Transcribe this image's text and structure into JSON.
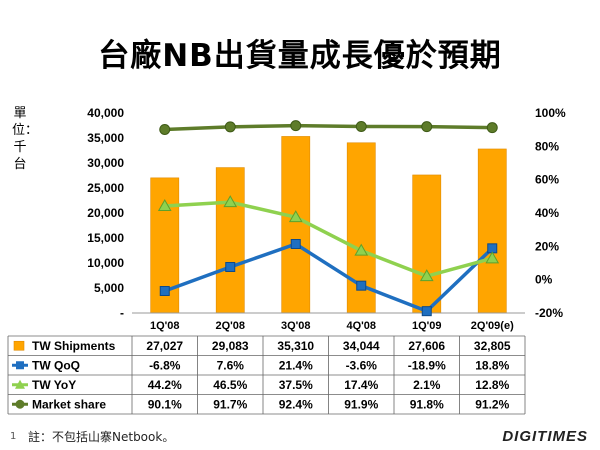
{
  "slide": {
    "title": "台廠NB出貨量成長優於預期",
    "ylabel_left": "單位：千台",
    "footnote_number": "1",
    "footnote": "註：不包括山寨Netbook。",
    "logo": "DIGITIMES"
  },
  "chart_data": {
    "type": "bar",
    "categories": [
      "1Q'08",
      "2Q'08",
      "3Q'08",
      "4Q'08",
      "1Q'09",
      "2Q'09(e)"
    ],
    "left_axis": {
      "ylim": [
        0,
        40000
      ],
      "ticks": [
        0,
        5000,
        10000,
        15000,
        20000,
        25000,
        30000,
        35000,
        40000
      ],
      "tick_labels": [
        "-",
        "5,000",
        "10,000",
        "15,000",
        "20,000",
        "25,000",
        "30,000",
        "35,000",
        "40,000"
      ]
    },
    "right_axis": {
      "ylim": [
        -20,
        100
      ],
      "ticks": [
        -20,
        0,
        20,
        40,
        60,
        80,
        100
      ],
      "tick_labels": [
        "-20%",
        "0%",
        "20%",
        "40%",
        "60%",
        "80%",
        "100%"
      ]
    },
    "series": [
      {
        "name": "TW Shipments",
        "type": "bar",
        "axis": "left",
        "color": "#FFA500",
        "values": [
          27027,
          29083,
          35310,
          34044,
          27606,
          32805
        ],
        "labels": [
          "27,027",
          "29,083",
          "35,310",
          "34,044",
          "27,606",
          "32,805"
        ]
      },
      {
        "name": "TW QoQ",
        "type": "line",
        "axis": "right",
        "color": "#1F6FC0",
        "marker": "square",
        "values": [
          -6.8,
          7.6,
          21.4,
          -3.6,
          -18.9,
          18.8
        ],
        "labels": [
          "-6.8%",
          "7.6%",
          "21.4%",
          "-3.6%",
          "-18.9%",
          "18.8%"
        ]
      },
      {
        "name": "TW YoY",
        "type": "line",
        "axis": "right",
        "color": "#8FD14F",
        "marker": "triangle",
        "values": [
          44.2,
          46.5,
          37.5,
          17.4,
          2.1,
          12.8
        ],
        "labels": [
          "44.2%",
          "46.5%",
          "37.5%",
          "17.4%",
          "2.1%",
          "12.8%"
        ]
      },
      {
        "name": "Market share",
        "type": "line",
        "axis": "right",
        "color": "#5E7C2A",
        "marker": "circle",
        "values": [
          90.1,
          91.7,
          92.4,
          91.9,
          91.8,
          91.2
        ],
        "labels": [
          "90.1%",
          "91.7%",
          "92.4%",
          "91.9%",
          "91.8%",
          "91.2%"
        ]
      }
    ],
    "legend": "data table below chart",
    "grid": false
  }
}
